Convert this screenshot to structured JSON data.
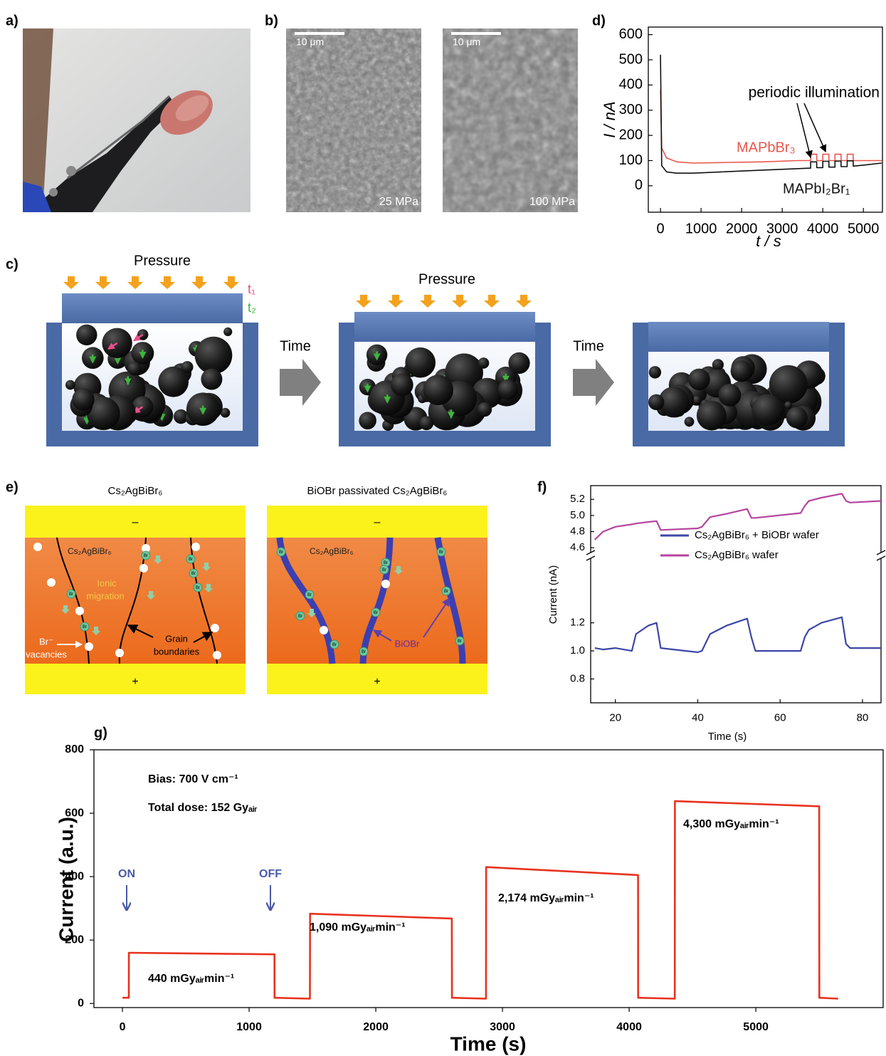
{
  "panel_labels": {
    "a": "a)",
    "b": "b)",
    "c": "c)",
    "d": "d)",
    "e": "e)",
    "f": "f)",
    "g": "g)"
  },
  "b": {
    "scale_bar": "10 μm",
    "pressures": [
      "25 MPa",
      "100 MPa"
    ]
  },
  "c": {
    "pressure": "Pressure",
    "t1": "t₁",
    "t2": "t₂",
    "time": "Time"
  },
  "e": {
    "left_title": "Cs₂AgBiBr₆",
    "right_title": "BiOBr passivated Cs₂AgBiBr₆",
    "minus": "–",
    "plus": "+",
    "material": "Cs₂AgBiBr₆",
    "ionic": [
      "Ionic",
      "migration"
    ],
    "vacancies": [
      "Br⁻",
      "vacancies"
    ],
    "grain": [
      "Grain",
      "boundaries"
    ],
    "biobr": "BiOBr",
    "br": "Br"
  },
  "chart_data": [
    {
      "type": "line",
      "ylabel": "I / nA",
      "xlabel": "t / s",
      "xlim": [
        -300,
        5470
      ],
      "ylim": [
        -105,
        630
      ],
      "xticks": [
        0,
        1000,
        2000,
        3000,
        4000,
        5000
      ],
      "yticks": [
        0,
        100,
        200,
        300,
        400,
        500,
        600
      ],
      "x": [
        0,
        30,
        150,
        400,
        800,
        1500,
        2500,
        3400,
        3700,
        3701,
        3850,
        3851,
        4000,
        4001,
        4150,
        4151,
        4300,
        4301,
        4450,
        4451,
        4600,
        4601,
        4750,
        4751,
        5000,
        5450
      ],
      "series": [
        {
          "name": "MAPbBr₃",
          "color": "#e8574e",
          "values": [
            380,
            150,
            110,
            95,
            90,
            92,
            95,
            100,
            100,
            125,
            125,
            100,
            100,
            125,
            125,
            100,
            100,
            125,
            125,
            100,
            100,
            125,
            125,
            100,
            100,
            100
          ]
        },
        {
          "name": "MAPbI₂Br₁",
          "color": "#111111",
          "values": [
            520,
            80,
            55,
            50,
            50,
            55,
            62,
            68,
            70,
            95,
            95,
            72,
            72,
            97,
            97,
            74,
            74,
            98,
            98,
            76,
            76,
            99,
            99,
            78,
            82,
            90
          ]
        }
      ],
      "annotations": [
        "periodic illumination"
      ]
    },
    {
      "type": "line",
      "ylabel": "Current (nA)",
      "xlabel": "Time (s)",
      "xlim": [
        14,
        84.5
      ],
      "ylim": [
        0.63,
        1.66
      ],
      "xticks": [
        20,
        40,
        60,
        80
      ],
      "yticks": [
        0.8,
        {
          "value": 1,
          "label": "1.0"
        },
        1.2
      ],
      "y_break": {
        "ylim": [
          4.54,
          5.37
        ],
        "yticks": [
          4.6,
          4.8,
          {
            "value": 5,
            "label": "5.0"
          },
          5.2
        ]
      },
      "x": [
        15,
        17,
        20,
        24,
        25,
        28,
        30,
        31,
        40,
        41,
        43,
        47,
        52,
        53,
        54,
        65,
        66,
        67,
        70,
        75,
        76,
        77,
        84.5
      ],
      "series": [
        {
          "name": "Cs₂AgBiBr₆ + BiOBr wafer",
          "color": "#3c46a8",
          "values": [
            1.02,
            1.01,
            1.02,
            1.0,
            1.12,
            1.18,
            1.2,
            1.02,
            0.99,
            1.0,
            1.12,
            1.18,
            1.23,
            1.1,
            1.0,
            1.0,
            1.1,
            1.15,
            1.2,
            1.24,
            1.05,
            1.02,
            1.02
          ]
        },
        {
          "name": "Cs₂AgBiBr₆ wafer",
          "color": "#b5449f",
          "axis": "y_break",
          "values": [
            4.7,
            4.8,
            4.86,
            4.89,
            4.9,
            4.92,
            4.93,
            4.82,
            4.84,
            4.86,
            4.98,
            5.02,
            5.08,
            4.97,
            4.97,
            5.03,
            5.12,
            5.18,
            5.22,
            5.27,
            5.18,
            5.16,
            5.18
          ]
        }
      ]
    },
    {
      "type": "line",
      "ylabel": "Current (a.u.)",
      "xlabel": "Time (s)",
      "xlim": [
        -225,
        6005
      ],
      "ylim": [
        -13,
        800
      ],
      "xticks": [
        0,
        1000,
        2000,
        3000,
        4000,
        5000
      ],
      "yticks": [
        0,
        200,
        400,
        600,
        800
      ],
      "x": [
        0,
        50,
        51,
        1200,
        1201,
        1480,
        1481,
        2600,
        2601,
        2870,
        2871,
        4070,
        4071,
        4360,
        4361,
        5500,
        5501,
        5650
      ],
      "series": [
        {
          "color": "#e8321e",
          "values": [
            18,
            18,
            160,
            155,
            18,
            15,
            283,
            268,
            18,
            15,
            430,
            405,
            18,
            15,
            638,
            622,
            18,
            15
          ]
        }
      ],
      "annotations": [
        "Bias: 700 V cm⁻¹",
        "Total dose: 152 Gyₐᵢᵣ",
        "ON",
        "OFF",
        "440 mGyₐᵢᵣmin⁻¹",
        "1,090 mGyₐᵢᵣmin⁻¹",
        "2,174 mGyₐᵢᵣmin⁻¹",
        "4,300 mGyₐᵢᵣmin⁻¹"
      ]
    }
  ]
}
